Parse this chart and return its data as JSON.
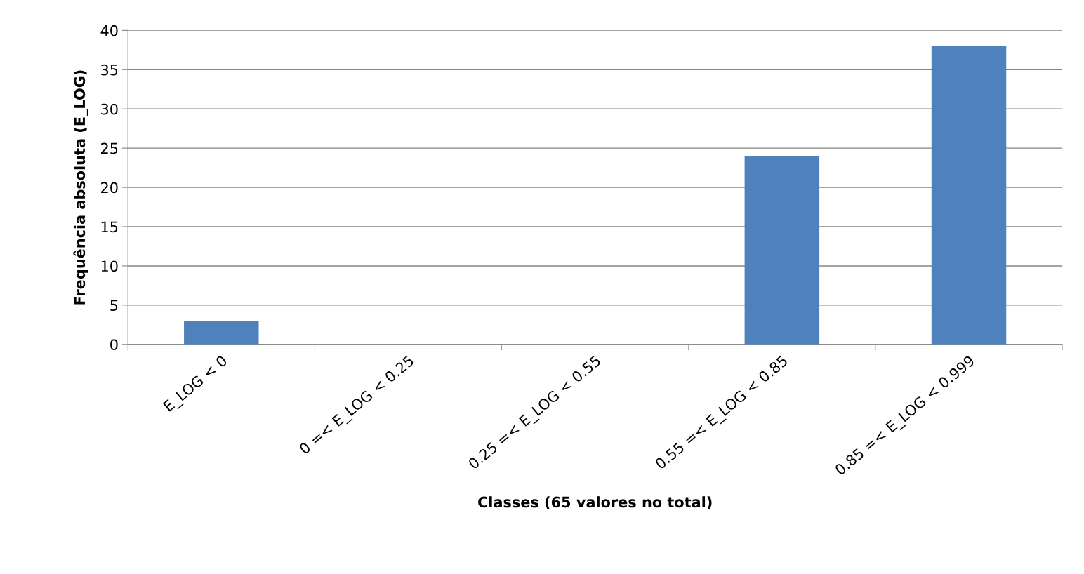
{
  "chart_data": {
    "type": "bar",
    "xlabel": "Classes (65 valores no total)",
    "ylabel": "Frequência absoluta (E_LOG)",
    "categories": [
      "E_LOG < 0",
      "0 =< E_LOG < 0.25",
      "0.25 =< E_LOG < 0.55",
      "0.55 =< E_LOG < 0.85",
      "0.85 =< E_LOG < 0.999"
    ],
    "values": [
      3,
      0,
      0,
      24,
      38
    ],
    "color": "#4f81bd",
    "ylim": [
      0,
      40
    ],
    "yticks": [
      0,
      5,
      10,
      15,
      20,
      25,
      30,
      35,
      40
    ],
    "grid": "y",
    "legend": false
  }
}
